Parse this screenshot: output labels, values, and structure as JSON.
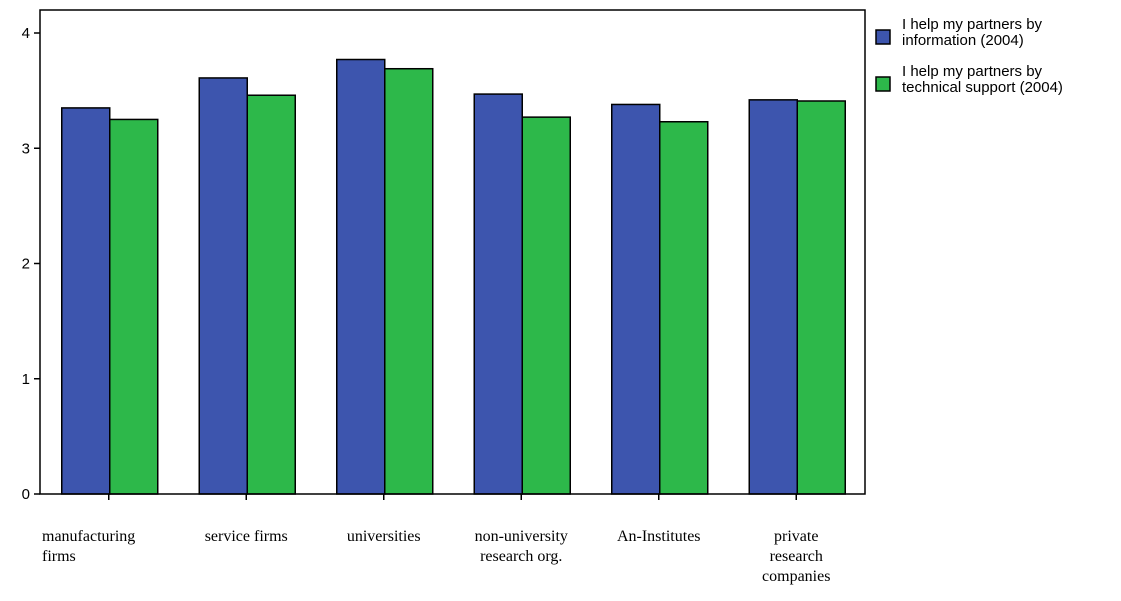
{
  "chart_data": {
    "type": "bar",
    "title": "",
    "xlabel": "",
    "ylabel": "",
    "ylim": [
      0,
      4
    ],
    "yticks": [
      0,
      1,
      2,
      3,
      4
    ],
    "grid": false,
    "legend_position": "top-right",
    "categories": [
      [
        "manufacturing",
        "firms"
      ],
      [
        "service firms"
      ],
      [
        "universities"
      ],
      [
        "non-university",
        "research org."
      ],
      [
        "An-Institutes"
      ],
      [
        "private",
        "research",
        "companies"
      ]
    ],
    "series": [
      {
        "name": [
          "I help my partners by",
          "information (2004)"
        ],
        "color": "#3d55ae",
        "values": [
          3.35,
          3.61,
          3.77,
          3.47,
          3.38,
          3.42
        ]
      },
      {
        "name": [
          "I help my partners by",
          "technical support (2004)"
        ],
        "color": "#2db84a",
        "values": [
          3.25,
          3.46,
          3.69,
          3.27,
          3.23,
          3.41
        ]
      }
    ]
  }
}
